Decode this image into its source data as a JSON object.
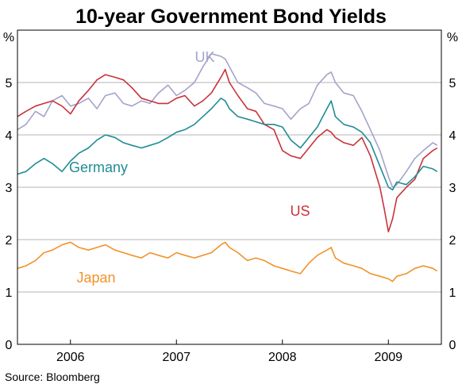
{
  "chart_data": {
    "type": "line",
    "title": "10-year Government Bond Yields",
    "source": "Source: Bloomberg",
    "y_unit": "%",
    "ylim": [
      0,
      6
    ],
    "yticks": [
      0,
      1,
      2,
      3,
      4,
      5
    ],
    "xlim": [
      2005.5,
      2009.5
    ],
    "xticks": [
      2006,
      2007,
      2008,
      2009
    ],
    "grid": true,
    "series": [
      {
        "name": "UK",
        "color": "#a3a3cc",
        "x": [
          2005.5,
          2005.58,
          2005.67,
          2005.75,
          2005.83,
          2005.92,
          2006.0,
          2006.08,
          2006.17,
          2006.25,
          2006.33,
          2006.42,
          2006.5,
          2006.58,
          2006.67,
          2006.75,
          2006.83,
          2006.92,
          2007.0,
          2007.08,
          2007.17,
          2007.25,
          2007.33,
          2007.42,
          2007.46,
          2007.5,
          2007.58,
          2007.67,
          2007.75,
          2007.83,
          2007.92,
          2008.0,
          2008.08,
          2008.17,
          2008.25,
          2008.33,
          2008.42,
          2008.46,
          2008.5,
          2008.58,
          2008.67,
          2008.75,
          2008.83,
          2008.92,
          2009.0,
          2009.04,
          2009.08,
          2009.17,
          2009.25,
          2009.33,
          2009.42,
          2009.46
        ],
        "values": [
          4.1,
          4.2,
          4.45,
          4.35,
          4.65,
          4.75,
          4.55,
          4.6,
          4.7,
          4.5,
          4.75,
          4.8,
          4.6,
          4.55,
          4.65,
          4.6,
          4.8,
          4.95,
          4.75,
          4.85,
          5.0,
          5.3,
          5.55,
          5.5,
          5.45,
          5.3,
          5.0,
          4.9,
          4.8,
          4.6,
          4.55,
          4.5,
          4.3,
          4.5,
          4.6,
          4.95,
          5.15,
          5.2,
          5.0,
          4.8,
          4.75,
          4.45,
          4.1,
          3.7,
          3.2,
          3.0,
          3.05,
          3.3,
          3.55,
          3.7,
          3.85,
          3.8
        ]
      },
      {
        "name": "US",
        "color": "#c8333a",
        "x": [
          2005.5,
          2005.58,
          2005.67,
          2005.75,
          2005.83,
          2005.92,
          2006.0,
          2006.08,
          2006.17,
          2006.25,
          2006.33,
          2006.42,
          2006.5,
          2006.58,
          2006.67,
          2006.75,
          2006.83,
          2006.92,
          2007.0,
          2007.08,
          2007.17,
          2007.25,
          2007.33,
          2007.42,
          2007.46,
          2007.5,
          2007.58,
          2007.67,
          2007.75,
          2007.83,
          2007.92,
          2008.0,
          2008.08,
          2008.17,
          2008.25,
          2008.33,
          2008.42,
          2008.46,
          2008.5,
          2008.58,
          2008.67,
          2008.75,
          2008.83,
          2008.92,
          2008.96,
          2009.0,
          2009.04,
          2009.08,
          2009.17,
          2009.25,
          2009.33,
          2009.42,
          2009.46
        ],
        "values": [
          4.35,
          4.45,
          4.55,
          4.6,
          4.65,
          4.55,
          4.4,
          4.65,
          4.85,
          5.05,
          5.15,
          5.1,
          5.05,
          4.9,
          4.7,
          4.65,
          4.6,
          4.6,
          4.7,
          4.75,
          4.55,
          4.65,
          4.8,
          5.1,
          5.25,
          5.0,
          4.75,
          4.5,
          4.45,
          4.2,
          4.1,
          3.7,
          3.6,
          3.55,
          3.75,
          3.95,
          4.1,
          4.05,
          3.95,
          3.85,
          3.8,
          3.95,
          3.6,
          3.0,
          2.6,
          2.15,
          2.4,
          2.8,
          3.0,
          3.15,
          3.55,
          3.7,
          3.75
        ]
      },
      {
        "name": "Germany",
        "color": "#1f8c96",
        "x": [
          2005.5,
          2005.58,
          2005.67,
          2005.75,
          2005.83,
          2005.92,
          2006.0,
          2006.08,
          2006.17,
          2006.25,
          2006.33,
          2006.42,
          2006.5,
          2006.58,
          2006.67,
          2006.75,
          2006.83,
          2006.92,
          2007.0,
          2007.08,
          2007.17,
          2007.25,
          2007.33,
          2007.42,
          2007.46,
          2007.5,
          2007.58,
          2007.67,
          2007.75,
          2007.83,
          2007.92,
          2008.0,
          2008.08,
          2008.17,
          2008.25,
          2008.33,
          2008.42,
          2008.46,
          2008.5,
          2008.58,
          2008.67,
          2008.75,
          2008.83,
          2008.92,
          2009.0,
          2009.04,
          2009.08,
          2009.17,
          2009.25,
          2009.33,
          2009.42,
          2009.46
        ],
        "values": [
          3.25,
          3.3,
          3.45,
          3.55,
          3.45,
          3.3,
          3.5,
          3.65,
          3.75,
          3.9,
          4.0,
          3.95,
          3.85,
          3.8,
          3.75,
          3.8,
          3.85,
          3.95,
          4.05,
          4.1,
          4.2,
          4.35,
          4.5,
          4.7,
          4.65,
          4.5,
          4.35,
          4.3,
          4.25,
          4.2,
          4.2,
          4.15,
          3.9,
          3.75,
          3.95,
          4.15,
          4.5,
          4.65,
          4.35,
          4.2,
          4.15,
          4.05,
          3.85,
          3.4,
          3.0,
          2.95,
          3.1,
          3.05,
          3.2,
          3.4,
          3.35,
          3.3
        ]
      },
      {
        "name": "Japan",
        "color": "#f2922a",
        "x": [
          2005.5,
          2005.58,
          2005.67,
          2005.75,
          2005.83,
          2005.92,
          2006.0,
          2006.08,
          2006.17,
          2006.25,
          2006.33,
          2006.42,
          2006.5,
          2006.58,
          2006.67,
          2006.75,
          2006.83,
          2006.92,
          2007.0,
          2007.08,
          2007.17,
          2007.25,
          2007.33,
          2007.42,
          2007.46,
          2007.5,
          2007.58,
          2007.67,
          2007.75,
          2007.83,
          2007.92,
          2008.0,
          2008.08,
          2008.17,
          2008.25,
          2008.33,
          2008.42,
          2008.46,
          2008.5,
          2008.58,
          2008.67,
          2008.75,
          2008.83,
          2008.92,
          2009.0,
          2009.04,
          2009.08,
          2009.17,
          2009.25,
          2009.33,
          2009.42,
          2009.46
        ],
        "values": [
          1.45,
          1.5,
          1.6,
          1.75,
          1.8,
          1.9,
          1.95,
          1.85,
          1.8,
          1.85,
          1.9,
          1.8,
          1.75,
          1.7,
          1.65,
          1.75,
          1.7,
          1.65,
          1.75,
          1.7,
          1.65,
          1.7,
          1.75,
          1.9,
          1.95,
          1.85,
          1.75,
          1.6,
          1.65,
          1.6,
          1.5,
          1.45,
          1.4,
          1.35,
          1.55,
          1.7,
          1.8,
          1.85,
          1.65,
          1.55,
          1.5,
          1.45,
          1.35,
          1.3,
          1.25,
          1.2,
          1.3,
          1.35,
          1.45,
          1.5,
          1.45,
          1.4
        ]
      }
    ]
  }
}
